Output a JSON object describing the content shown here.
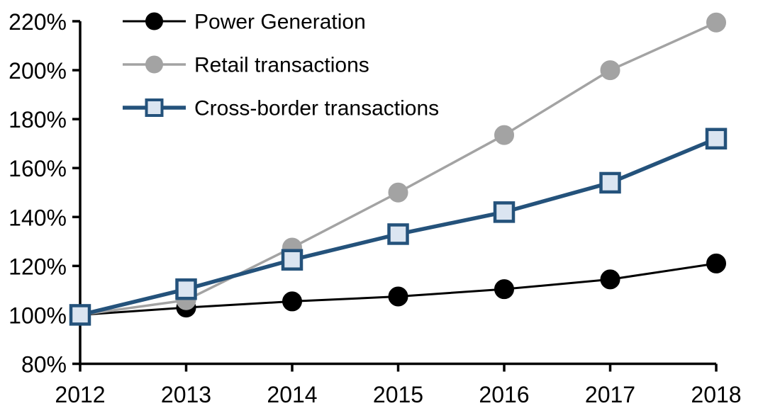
{
  "chart_data": {
    "type": "line",
    "title": "",
    "xlabel": "",
    "ylabel": "",
    "grid": false,
    "background": "#ffffff",
    "axis_color": "#000000",
    "legend_position": "top-left",
    "categories": [
      "2012",
      "2013",
      "2014",
      "2015",
      "2016",
      "2017",
      "2018"
    ],
    "ylim": [
      80,
      220
    ],
    "y_tick_step": 20,
    "y_tick_labels": [
      "80%",
      "100%",
      "120%",
      "140%",
      "160%",
      "180%",
      "200%",
      "220%"
    ],
    "series": [
      {
        "name": "Power Generation",
        "values": [
          100,
          103,
          105.5,
          107.5,
          110.5,
          114.5,
          121
        ],
        "color": "#000000",
        "marker": "circle",
        "marker_fill": "#000000",
        "marker_stroke": "#000000",
        "line_width": 3
      },
      {
        "name": "Retail transactions",
        "values": [
          100,
          106,
          127.5,
          150,
          173.5,
          200,
          219.5
        ],
        "color": "#a3a3a3",
        "marker": "circle",
        "marker_fill": "#a3a3a3",
        "marker_stroke": "#a3a3a3",
        "line_width": 3.5
      },
      {
        "name": "Cross-border transactions",
        "values": [
          100,
          110.5,
          122.5,
          133,
          142,
          154,
          172
        ],
        "color": "#24527b",
        "marker": "square",
        "marker_fill": "#dbe5f1",
        "marker_stroke": "#24527b",
        "line_width": 5.5
      }
    ]
  }
}
